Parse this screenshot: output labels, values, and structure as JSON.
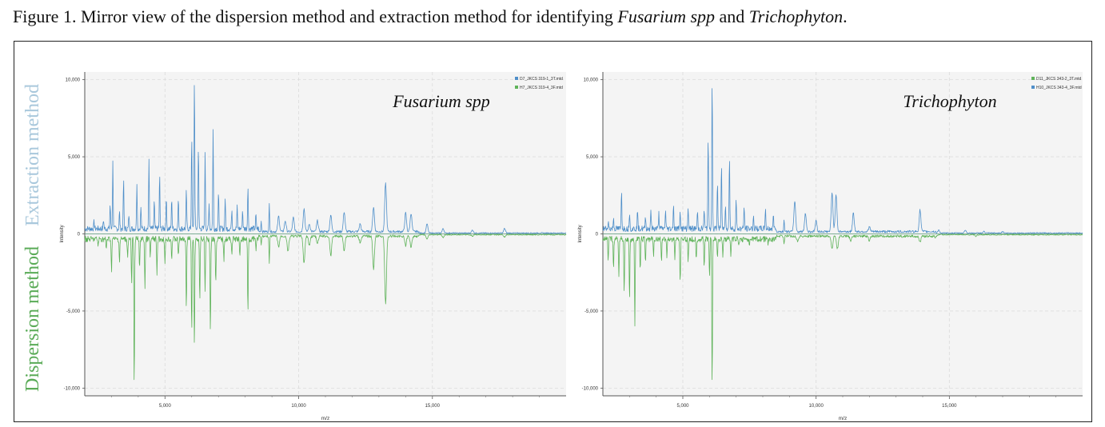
{
  "caption": {
    "prefix": "Figure 1. Mirror view of the dispersion method and extraction method for identifying ",
    "italic1": "Fusarium spp",
    "middle": " and ",
    "italic2": "Trichophyton",
    "suffix": "."
  },
  "side_labels": {
    "top": "Extraction method",
    "bottom": "Dispersion method"
  },
  "colors": {
    "blue": "#4f8fc9",
    "green": "#5fb35a",
    "plot_bg": "#f4f4f4"
  },
  "chart_data": [
    {
      "type": "line",
      "annotation": "Fusarium spp",
      "xlabel": "m/z",
      "ylabel": "Intensity",
      "xlim": [
        2000,
        20000
      ],
      "ylim": [
        -10500,
        10500
      ],
      "x_ticks": [
        5000,
        10000,
        15000
      ],
      "x_tick_labels": [
        "5,000",
        "10,000",
        "15,000"
      ],
      "y_ticks": [
        10000,
        5000,
        0,
        -5000,
        -10000
      ],
      "y_tick_labels": [
        "10,000",
        "5,000",
        "0",
        "-5,000",
        "-10,000"
      ],
      "grid": true,
      "legend_position": "top-right",
      "series": [
        {
          "name": "D7_JKCS 319-1_3T.mtd",
          "direction": "up",
          "color": "#4f8fc9",
          "peaks": [
            [
              2350,
              450
            ],
            [
              2700,
              600
            ],
            [
              2950,
              1600
            ],
            [
              3050,
              4300
            ],
            [
              3300,
              1100
            ],
            [
              3450,
              3200
            ],
            [
              3650,
              900
            ],
            [
              3950,
              3000
            ],
            [
              4100,
              1400
            ],
            [
              4400,
              4500
            ],
            [
              4600,
              1800
            ],
            [
              4800,
              3500
            ],
            [
              5050,
              2100
            ],
            [
              5250,
              2000
            ],
            [
              5500,
              1900
            ],
            [
              5800,
              2500
            ],
            [
              6000,
              6200
            ],
            [
              6100,
              10000
            ],
            [
              6250,
              5400
            ],
            [
              6500,
              4800
            ],
            [
              6650,
              1600
            ],
            [
              6800,
              6400
            ],
            [
              7000,
              2300
            ],
            [
              7250,
              2000
            ],
            [
              7500,
              1300
            ],
            [
              7700,
              1400
            ],
            [
              7900,
              1200
            ],
            [
              8100,
              2800
            ],
            [
              8400,
              900
            ],
            [
              8600,
              700
            ],
            [
              8900,
              1800
            ],
            [
              9250,
              1000
            ],
            [
              9500,
              700
            ],
            [
              9800,
              900
            ],
            [
              10200,
              1500
            ],
            [
              10400,
              500
            ],
            [
              10700,
              700
            ],
            [
              11200,
              1100
            ],
            [
              11700,
              1300
            ],
            [
              12300,
              500
            ],
            [
              12800,
              1600
            ],
            [
              13250,
              3100
            ],
            [
              14000,
              1200
            ],
            [
              14200,
              1200
            ],
            [
              14800,
              600
            ],
            [
              15400,
              300
            ],
            [
              16500,
              200
            ],
            [
              17700,
              300
            ]
          ]
        },
        {
          "name": "H7_JKCS 319-4_3F.mtd",
          "direction": "down",
          "color": "#5fb35a",
          "peaks": [
            [
              2500,
              450
            ],
            [
              2800,
              700
            ],
            [
              3000,
              2100
            ],
            [
              3300,
              1500
            ],
            [
              3600,
              1200
            ],
            [
              3750,
              3000
            ],
            [
              3850,
              10000
            ],
            [
              4050,
              2000
            ],
            [
              4250,
              3100
            ],
            [
              4450,
              1200
            ],
            [
              4700,
              2500
            ],
            [
              5000,
              1700
            ],
            [
              5250,
              1300
            ],
            [
              5500,
              1200
            ],
            [
              5800,
              4500
            ],
            [
              6000,
              6300
            ],
            [
              6100,
              7300
            ],
            [
              6300,
              4300
            ],
            [
              6500,
              3500
            ],
            [
              6700,
              6200
            ],
            [
              6900,
              3000
            ],
            [
              7200,
              1400
            ],
            [
              7500,
              1000
            ],
            [
              7800,
              1300
            ],
            [
              8100,
              4900
            ],
            [
              8400,
              700
            ],
            [
              8600,
              600
            ],
            [
              8900,
              1800
            ],
            [
              9250,
              700
            ],
            [
              9600,
              1000
            ],
            [
              10200,
              1800
            ],
            [
              10400,
              600
            ],
            [
              10700,
              500
            ],
            [
              11200,
              1300
            ],
            [
              11700,
              900
            ],
            [
              12300,
              400
            ],
            [
              12800,
              2100
            ],
            [
              13250,
              4400
            ],
            [
              14000,
              600
            ],
            [
              14200,
              700
            ],
            [
              14800,
              300
            ],
            [
              15400,
              200
            ],
            [
              16500,
              100
            ],
            [
              17700,
              150
            ]
          ]
        }
      ]
    },
    {
      "type": "line",
      "annotation": "Trichophyton",
      "xlabel": "m/z",
      "ylabel": "Intensity",
      "xlim": [
        2000,
        20000
      ],
      "ylim": [
        -10500,
        10500
      ],
      "x_ticks": [
        5000,
        10000,
        15000
      ],
      "x_tick_labels": [
        "5,000",
        "10,000",
        "15,000"
      ],
      "y_ticks": [
        10000,
        5000,
        0,
        -5000,
        -10000
      ],
      "y_tick_labels": [
        "10,000",
        "5,000",
        "0",
        "-5,000",
        "-10,000"
      ],
      "grid": true,
      "legend_position": "top-right",
      "series": [
        {
          "name": "D11_JKCS 343-2_3T.mtd",
          "direction": "down",
          "color": "#5fb35a",
          "peaks": [
            [
              2200,
              1400
            ],
            [
              2400,
              1900
            ],
            [
              2600,
              2300
            ],
            [
              2800,
              3500
            ],
            [
              3000,
              4100
            ],
            [
              3200,
              5700
            ],
            [
              3400,
              2100
            ],
            [
              3600,
              1600
            ],
            [
              3900,
              1200
            ],
            [
              4200,
              1400
            ],
            [
              4400,
              1100
            ],
            [
              4700,
              1200
            ],
            [
              4900,
              2900
            ],
            [
              5200,
              1500
            ],
            [
              5500,
              1300
            ],
            [
              5800,
              1800
            ],
            [
              6000,
              2500
            ],
            [
              6100,
              10000
            ],
            [
              6300,
              1300
            ],
            [
              6500,
              1000
            ],
            [
              6800,
              1100
            ],
            [
              7100,
              500
            ],
            [
              7500,
              600
            ],
            [
              8200,
              400
            ],
            [
              8800,
              500
            ],
            [
              9300,
              300
            ],
            [
              10600,
              800
            ],
            [
              10800,
              800
            ],
            [
              11300,
              300
            ],
            [
              12000,
              300
            ],
            [
              13900,
              400
            ],
            [
              14500,
              100
            ],
            [
              16000,
              100
            ]
          ]
        },
        {
          "name": "H10_JKCS 343-4_3F.mtd",
          "direction": "up",
          "color": "#4f8fc9",
          "peaks": [
            [
              2200,
              500
            ],
            [
              2400,
              700
            ],
            [
              2700,
              2500
            ],
            [
              3000,
              1100
            ],
            [
              3300,
              1200
            ],
            [
              3600,
              800
            ],
            [
              3800,
              1300
            ],
            [
              4100,
              1000
            ],
            [
              4350,
              1200
            ],
            [
              4650,
              1600
            ],
            [
              4900,
              1200
            ],
            [
              5200,
              1400
            ],
            [
              5550,
              1100
            ],
            [
              5800,
              1300
            ],
            [
              5950,
              6200
            ],
            [
              6100,
              10000
            ],
            [
              6300,
              3100
            ],
            [
              6450,
              4100
            ],
            [
              6600,
              1700
            ],
            [
              6750,
              4800
            ],
            [
              7000,
              1900
            ],
            [
              7300,
              1500
            ],
            [
              7650,
              800
            ],
            [
              8100,
              1400
            ],
            [
              8400,
              900
            ],
            [
              8800,
              800
            ],
            [
              9200,
              2000
            ],
            [
              9600,
              1200
            ],
            [
              10000,
              700
            ],
            [
              10600,
              2500
            ],
            [
              10750,
              2400
            ],
            [
              11400,
              1200
            ],
            [
              12000,
              300
            ],
            [
              13900,
              1400
            ],
            [
              14600,
              200
            ],
            [
              15600,
              200
            ],
            [
              16300,
              100
            ],
            [
              17000,
              100
            ]
          ]
        }
      ]
    }
  ]
}
